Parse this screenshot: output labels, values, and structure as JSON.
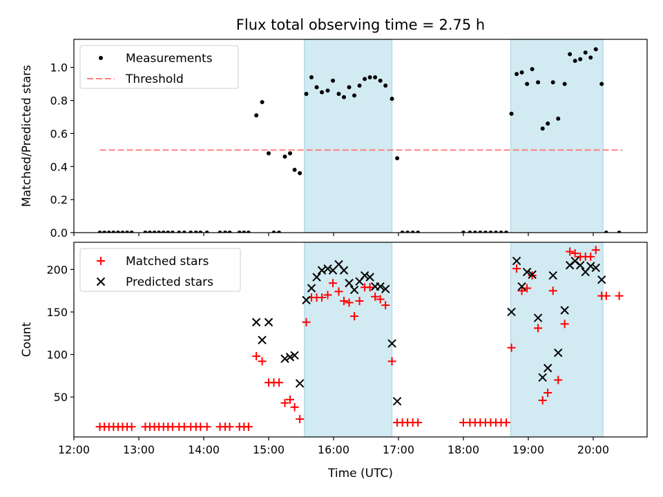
{
  "figure": {
    "title": "Flux total observing time = 2.75 h",
    "xlabel": "Time (UTC)"
  },
  "colors": {
    "band": "#add8e6",
    "measurements": "#000000",
    "threshold": "#ff7f7f",
    "matched": "#ff0000",
    "predicted": "#000000"
  },
  "chart_data": [
    {
      "type": "scatter",
      "panel": "top",
      "ylabel": "Matched/Predicted stars",
      "x_axis": {
        "unit": "hours UTC",
        "xlim": [
          12.0,
          20.83
        ],
        "ticks": [
          12,
          13,
          14,
          15,
          16,
          17,
          18,
          19,
          20
        ],
        "tick_labels": [
          "12:00",
          "13:00",
          "14:00",
          "15:00",
          "16:00",
          "17:00",
          "18:00",
          "19:00",
          "20:00"
        ]
      },
      "ylim": [
        0,
        1.17
      ],
      "yticks": [
        0.0,
        0.2,
        0.4,
        0.6,
        0.8,
        1.0
      ],
      "ytick_labels": [
        "0.0",
        "0.2",
        "0.4",
        "0.6",
        "0.8",
        "1.0"
      ],
      "legend_position": "top-left",
      "shaded_intervals": [
        [
          15.55,
          16.9
        ],
        [
          18.73,
          20.15
        ]
      ],
      "threshold": {
        "name": "Threshold",
        "value": 0.5,
        "x_range": [
          12.4,
          20.45
        ],
        "style": "dashed"
      },
      "series": [
        {
          "name": "Measurements",
          "x": [
            12.4,
            12.47,
            12.54,
            12.61,
            12.68,
            12.75,
            12.82,
            12.89,
            13.1,
            13.17,
            13.24,
            13.31,
            13.38,
            13.45,
            13.52,
            13.62,
            13.7,
            13.8,
            13.88,
            13.95,
            14.05,
            14.25,
            14.33,
            14.4,
            14.55,
            14.62,
            14.69,
            14.81,
            14.9,
            15.0,
            15.08,
            15.16,
            15.25,
            15.33,
            15.4,
            15.48,
            15.58,
            15.66,
            15.74,
            15.82,
            15.91,
            15.99,
            16.08,
            16.16,
            16.24,
            16.32,
            16.4,
            16.48,
            16.56,
            16.64,
            16.72,
            16.8,
            16.9,
            16.98,
            17.06,
            17.14,
            17.22,
            17.3,
            18.0,
            18.1,
            18.18,
            18.26,
            18.34,
            18.42,
            18.5,
            18.58,
            18.66,
            18.74,
            18.82,
            18.9,
            18.98,
            19.06,
            19.15,
            19.22,
            19.3,
            19.38,
            19.46,
            19.56,
            19.64,
            19.72,
            19.8,
            19.88,
            19.96,
            20.04,
            20.13,
            20.2,
            20.4
          ],
          "y": [
            0,
            0,
            0,
            0,
            0,
            0,
            0,
            0,
            0,
            0,
            0,
            0,
            0,
            0,
            0,
            0,
            0,
            0,
            0,
            0,
            0,
            0,
            0,
            0,
            0,
            0,
            0,
            0.71,
            0.79,
            0.48,
            0,
            0,
            0.46,
            0.48,
            0.38,
            0.36,
            0.84,
            0.94,
            0.88,
            0.85,
            0.86,
            0.92,
            0.84,
            0.82,
            0.88,
            0.83,
            0.89,
            0.93,
            0.94,
            0.94,
            0.92,
            0.89,
            0.81,
            0.45,
            0,
            0,
            0,
            0,
            0,
            0,
            0,
            0,
            0,
            0,
            0,
            0,
            0,
            0.72,
            0.96,
            0.97,
            0.9,
            0.99,
            0.91,
            0.63,
            0.66,
            0.91,
            0.69,
            0.9,
            1.08,
            1.04,
            1.05,
            1.09,
            1.06,
            1.11,
            0.9,
            0,
            0
          ]
        }
      ]
    },
    {
      "type": "scatter",
      "panel": "bottom",
      "ylabel": "Count",
      "x_axis": {
        "unit": "hours UTC",
        "xlim": [
          12.0,
          20.83
        ],
        "ticks": [
          12,
          13,
          14,
          15,
          16,
          17,
          18,
          19,
          20
        ],
        "tick_labels": [
          "12:00",
          "13:00",
          "14:00",
          "15:00",
          "16:00",
          "17:00",
          "18:00",
          "19:00",
          "20:00"
        ]
      },
      "ylim": [
        3,
        232
      ],
      "yticks": [
        50,
        100,
        150,
        200
      ],
      "ytick_labels": [
        "50",
        "100",
        "150",
        "200"
      ],
      "legend_position": "top-left",
      "shaded_intervals": [
        [
          15.55,
          16.9
        ],
        [
          18.73,
          20.15
        ]
      ],
      "series": [
        {
          "name": "Matched stars",
          "marker": "+",
          "x": [
            12.4,
            12.47,
            12.54,
            12.61,
            12.68,
            12.75,
            12.82,
            12.89,
            13.1,
            13.17,
            13.24,
            13.31,
            13.38,
            13.45,
            13.52,
            13.62,
            13.7,
            13.8,
            13.88,
            13.95,
            14.05,
            14.25,
            14.33,
            14.4,
            14.55,
            14.62,
            14.69,
            14.81,
            14.9,
            15.0,
            15.08,
            15.16,
            15.25,
            15.33,
            15.4,
            15.48,
            15.58,
            15.66,
            15.74,
            15.82,
            15.91,
            15.99,
            16.08,
            16.16,
            16.24,
            16.32,
            16.4,
            16.48,
            16.56,
            16.64,
            16.72,
            16.8,
            16.9,
            16.98,
            17.06,
            17.14,
            17.22,
            17.3,
            18.0,
            18.1,
            18.18,
            18.26,
            18.34,
            18.42,
            18.5,
            18.58,
            18.66,
            18.74,
            18.82,
            18.9,
            18.98,
            19.06,
            19.15,
            19.22,
            19.3,
            19.38,
            19.46,
            19.56,
            19.64,
            19.72,
            19.8,
            19.88,
            19.96,
            20.04,
            20.13,
            20.2,
            20.4
          ],
          "y": [
            15,
            15,
            15,
            15,
            15,
            15,
            15,
            15,
            15,
            15,
            15,
            15,
            15,
            15,
            15,
            15,
            15,
            15,
            15,
            15,
            15,
            15,
            15,
            15,
            15,
            15,
            15,
            98,
            92,
            67,
            67,
            67,
            43,
            47,
            38,
            24,
            138,
            167,
            167,
            167,
            170,
            184,
            174,
            163,
            161,
            145,
            163,
            179,
            179,
            168,
            165,
            158,
            92,
            20,
            20,
            20,
            20,
            20,
            20,
            20,
            20,
            20,
            20,
            20,
            20,
            20,
            20,
            108,
            201,
            175,
            178,
            193,
            131,
            46,
            55,
            175,
            70,
            136,
            221,
            219,
            215,
            215,
            215,
            223,
            169,
            169,
            169
          ]
        },
        {
          "name": "Predicted stars",
          "marker": "x",
          "x": [
            14.81,
            14.9,
            15.0,
            15.25,
            15.33,
            15.4,
            15.48,
            15.58,
            15.66,
            15.74,
            15.82,
            15.91,
            15.99,
            16.08,
            16.16,
            16.24,
            16.32,
            16.4,
            16.48,
            16.56,
            16.64,
            16.72,
            16.8,
            16.9,
            16.98,
            18.74,
            18.82,
            18.9,
            18.98,
            19.06,
            19.15,
            19.22,
            19.3,
            19.38,
            19.46,
            19.56,
            19.64,
            19.72,
            19.8,
            19.88,
            19.96,
            20.04,
            20.13
          ],
          "y": [
            138,
            117,
            138,
            95,
            97,
            99,
            66,
            164,
            178,
            191,
            199,
            201,
            199,
            206,
            199,
            184,
            176,
            186,
            193,
            191,
            180,
            180,
            177,
            113,
            45,
            150,
            210,
            180,
            197,
            194,
            143,
            73,
            84,
            193,
            102,
            152,
            205,
            210,
            205,
            197,
            204,
            202,
            188
          ]
        }
      ]
    }
  ]
}
